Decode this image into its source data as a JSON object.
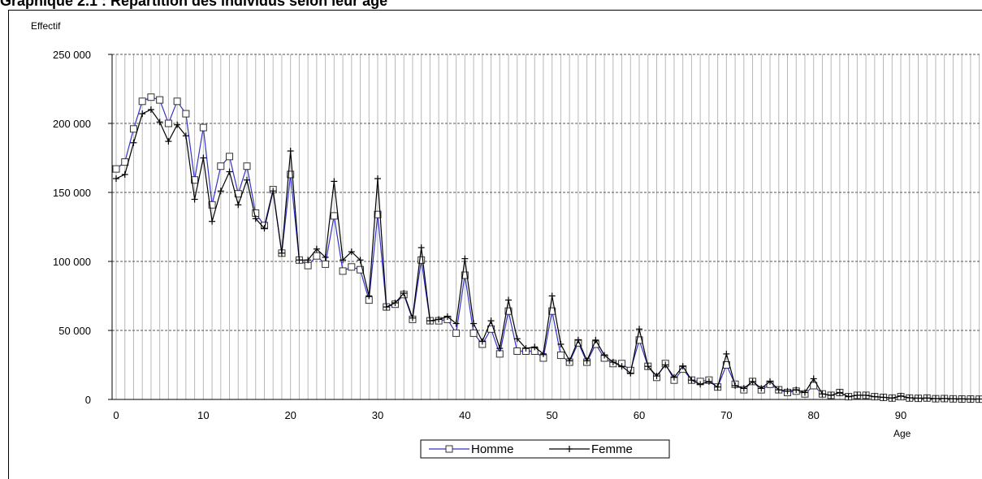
{
  "title": "Graphique 2.1 : Répartition des individus selon leur âge",
  "chart_data": {
    "type": "line",
    "xlabel": "Age",
    "ylabel": "Effectif",
    "xlim": [
      0,
      99
    ],
    "ylim": [
      0,
      250000
    ],
    "x_ticks": [
      "0",
      "10",
      "20",
      "30",
      "40",
      "50",
      "60",
      "70",
      "80",
      "90"
    ],
    "y_ticks": [
      "0",
      "50 000",
      "100 000",
      "150 000",
      "200 000",
      "250 000"
    ],
    "grid": "vertical lines at every year, horizontal dashed lines at every 50 000",
    "legend_position": "bottom-center",
    "x": [
      0,
      1,
      2,
      3,
      4,
      5,
      6,
      7,
      8,
      9,
      10,
      11,
      12,
      13,
      14,
      15,
      16,
      17,
      18,
      19,
      20,
      21,
      22,
      23,
      24,
      25,
      26,
      27,
      28,
      29,
      30,
      31,
      32,
      33,
      34,
      35,
      36,
      37,
      38,
      39,
      40,
      41,
      42,
      43,
      44,
      45,
      46,
      47,
      48,
      49,
      50,
      51,
      52,
      53,
      54,
      55,
      56,
      57,
      58,
      59,
      60,
      61,
      62,
      63,
      64,
      65,
      66,
      67,
      68,
      69,
      70,
      71,
      72,
      73,
      74,
      75,
      76,
      77,
      78,
      79,
      80,
      81,
      82,
      83,
      84,
      85,
      86,
      87,
      88,
      89,
      90,
      91,
      92,
      93,
      94,
      95,
      96,
      97,
      98,
      99
    ],
    "series": [
      {
        "name": "Homme",
        "color": "#3333cc",
        "marker": "square",
        "values": [
          167000,
          172000,
          196000,
          216000,
          219000,
          217000,
          200000,
          216000,
          207000,
          159000,
          197000,
          141000,
          169000,
          176000,
          149000,
          169000,
          135000,
          126000,
          152000,
          106000,
          163000,
          101000,
          97000,
          104000,
          98000,
          133000,
          93000,
          96000,
          94000,
          72000,
          134000,
          67000,
          69000,
          76000,
          58000,
          101000,
          57000,
          57000,
          58000,
          48000,
          90000,
          48000,
          40000,
          51000,
          33000,
          64000,
          35000,
          35000,
          35000,
          30000,
          64000,
          32000,
          27000,
          41000,
          27000,
          40000,
          30000,
          26000,
          26000,
          21000,
          43000,
          24000,
          16000,
          26000,
          14000,
          22000,
          14000,
          13000,
          14000,
          9000,
          25000,
          11000,
          7000,
          13000,
          7000,
          11000,
          7000,
          5000,
          6000,
          4000,
          10000,
          4000,
          3000,
          5000,
          2000,
          3000,
          3000,
          2000,
          1500,
          1000,
          2000,
          1000,
          800,
          1000,
          500,
          600,
          400,
          300,
          300,
          200
        ]
      },
      {
        "name": "Femme",
        "color": "#000000",
        "marker": "plus",
        "values": [
          160000,
          163000,
          186000,
          207000,
          210000,
          201000,
          187000,
          199000,
          191000,
          145000,
          175000,
          129000,
          151000,
          165000,
          141000,
          159000,
          131000,
          124000,
          151000,
          106000,
          180000,
          101000,
          101000,
          109000,
          103000,
          158000,
          101000,
          107000,
          101000,
          75000,
          160000,
          67000,
          70000,
          77000,
          59000,
          110000,
          57000,
          58000,
          60000,
          55000,
          102000,
          55000,
          42000,
          57000,
          37000,
          72000,
          44000,
          37000,
          38000,
          33000,
          75000,
          40000,
          28000,
          43000,
          28000,
          43000,
          32000,
          27000,
          24000,
          19000,
          51000,
          24000,
          17000,
          25000,
          16000,
          24000,
          14000,
          11000,
          13000,
          9000,
          33000,
          10000,
          8000,
          13000,
          8000,
          13000,
          7000,
          6000,
          7000,
          5000,
          15000,
          4000,
          3000,
          5000,
          2000,
          3000,
          3000,
          2000,
          1500,
          1000,
          2500,
          1200,
          900,
          1000,
          600,
          700,
          500,
          400,
          300,
          300
        ]
      }
    ]
  }
}
